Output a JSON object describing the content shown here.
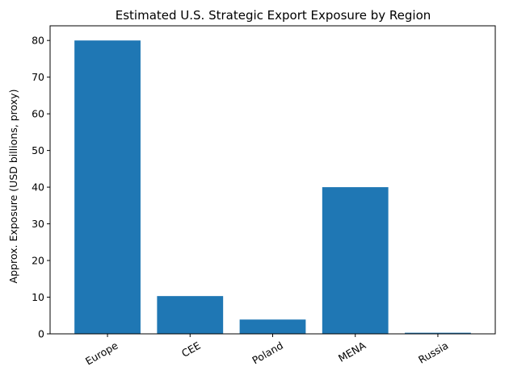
{
  "chart_data": {
    "type": "bar",
    "title": "Estimated U.S. Strategic Export Exposure by Region",
    "xlabel": "",
    "ylabel": "Approx. Exposure (USD billions, proxy)",
    "categories": [
      "Europe",
      "CEE",
      "Poland",
      "MENA",
      "Russia"
    ],
    "values": [
      80,
      10.3,
      3.9,
      40,
      0.3
    ],
    "ylim": [
      0,
      84
    ],
    "yticks": [
      0,
      10,
      20,
      30,
      40,
      50,
      60,
      70,
      80
    ],
    "ytick_labels": [
      "0",
      "10",
      "20",
      "30",
      "40",
      "50",
      "60",
      "70",
      "80"
    ],
    "bar_color": "#1f77b4",
    "grid": false,
    "legend": "none",
    "xtick_rotation": 30
  }
}
